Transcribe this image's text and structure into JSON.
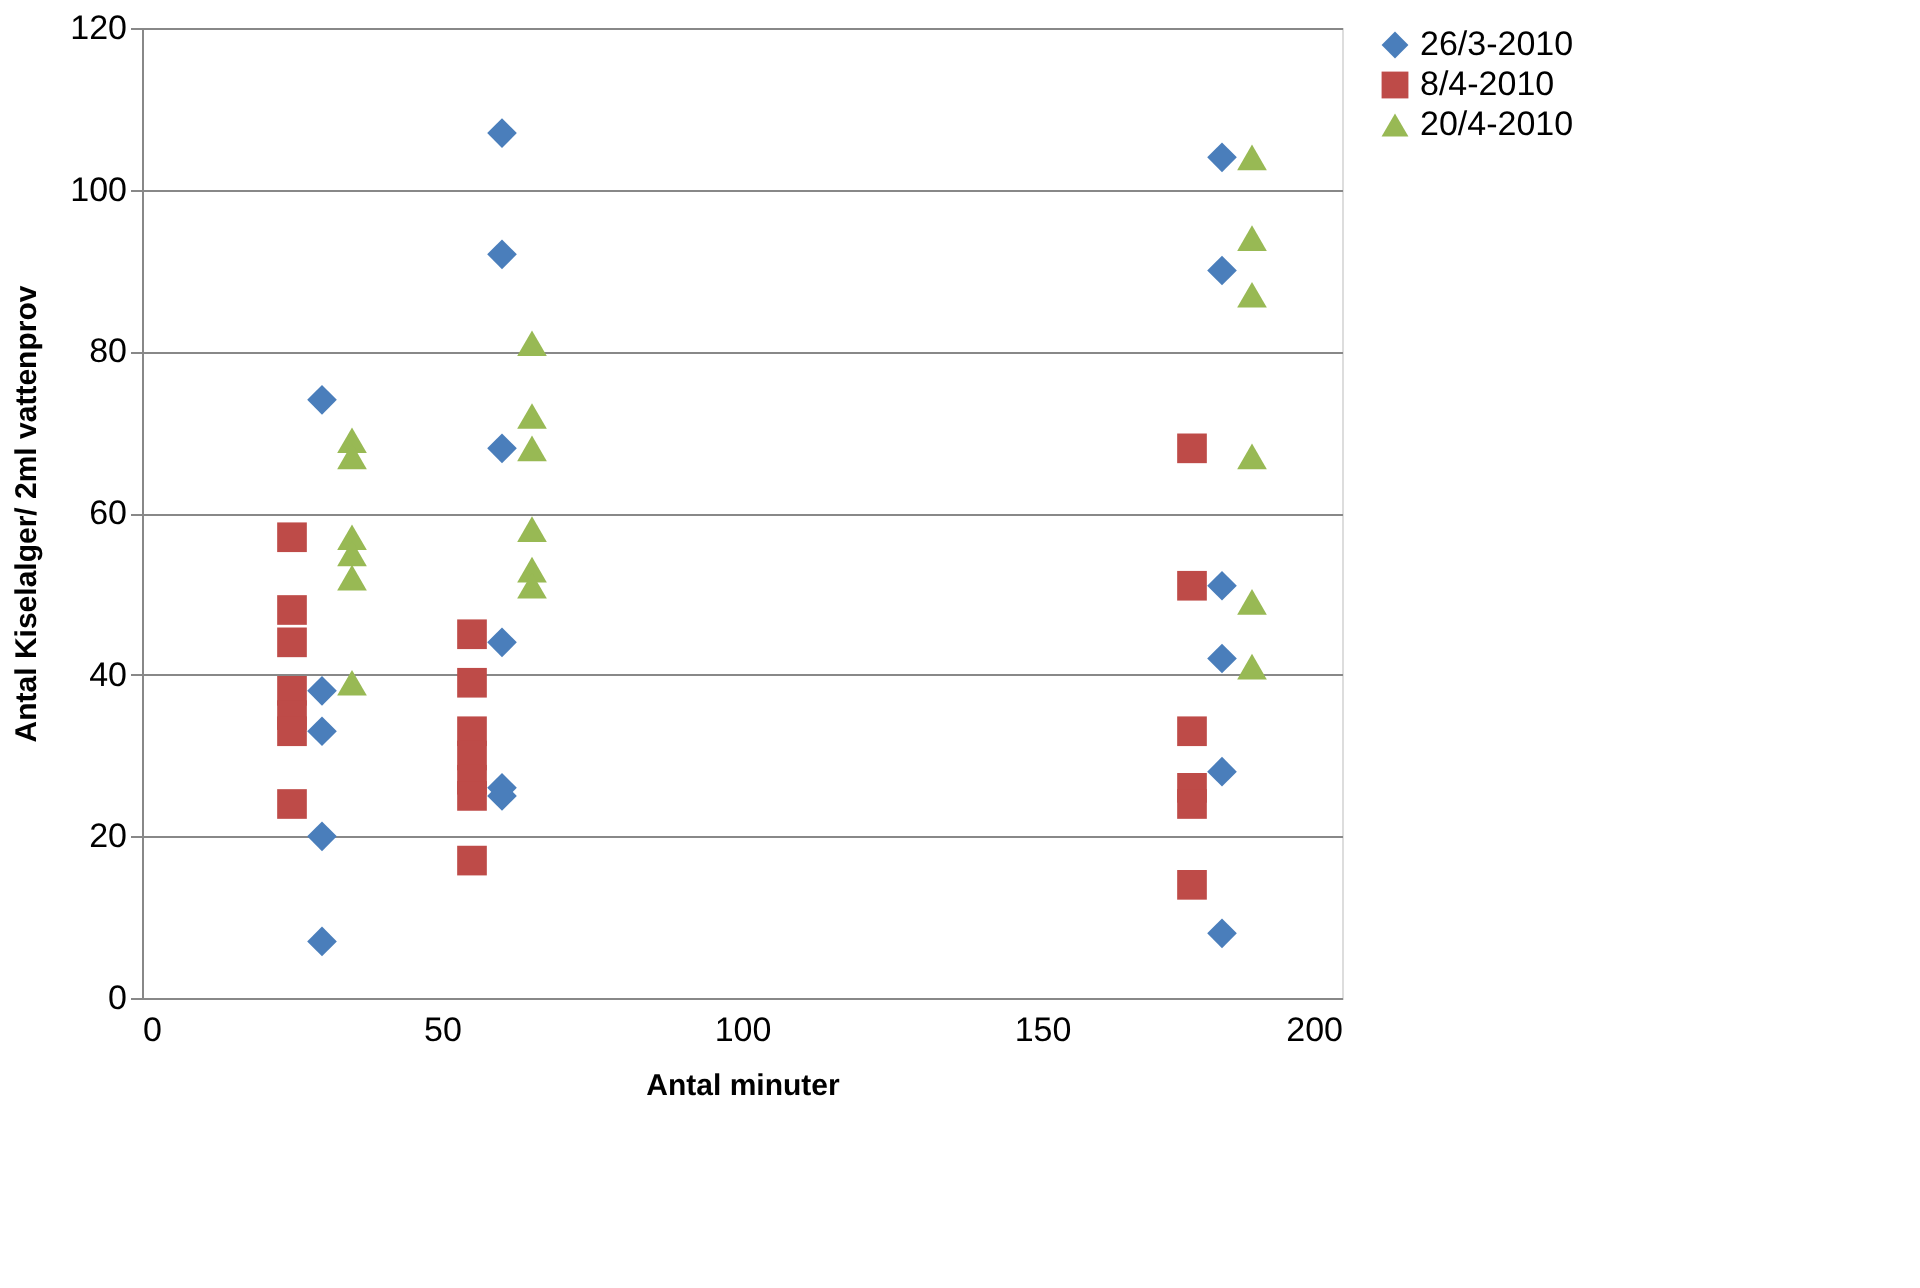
{
  "chart_data": {
    "type": "scatter",
    "xlabel": "Antal minuter",
    "ylabel": "Antal Kiselalger/ 2ml vattenprov",
    "xlim": [
      0,
      200
    ],
    "xticks": [
      0,
      50,
      100,
      150,
      200
    ],
    "ylim": [
      0,
      120
    ],
    "yticks": [
      0,
      20,
      40,
      60,
      80,
      100,
      120
    ],
    "grid": "y",
    "legend": "right",
    "series": [
      {
        "name": "26/3-2010",
        "color": "#4a7ebb",
        "marker": "diamond",
        "x": [
          30,
          30,
          30,
          30,
          30,
          60,
          60,
          60,
          60,
          60,
          60,
          180,
          180,
          180,
          180,
          180,
          180
        ],
        "values": [
          74,
          38,
          33,
          20,
          7,
          107,
          92,
          68,
          44,
          26,
          25,
          104,
          90,
          51,
          42,
          28,
          8
        ]
      },
      {
        "name": "8/4-2010",
        "color": "#be4b48",
        "marker": "square",
        "x": [
          25,
          25,
          25,
          25,
          25,
          25,
          25,
          55,
          55,
          55,
          55,
          55,
          55,
          55,
          175,
          175,
          175,
          175,
          175,
          175
        ],
        "values": [
          57,
          48,
          44,
          38,
          35,
          33,
          24,
          45,
          39,
          33,
          30,
          27,
          25,
          17,
          68,
          51,
          33,
          26,
          24,
          14
        ]
      },
      {
        "name": "20/4-2010",
        "color": "#98b954",
        "marker": "triangle",
        "x": [
          35,
          35,
          35,
          35,
          35,
          35,
          65,
          65,
          65,
          65,
          65,
          65,
          185,
          185,
          185,
          185,
          185,
          185
        ],
        "values": [
          69,
          67,
          57,
          55,
          52,
          39,
          81,
          72,
          68,
          58,
          53,
          51,
          104,
          94,
          87,
          67,
          49,
          41
        ]
      }
    ]
  }
}
